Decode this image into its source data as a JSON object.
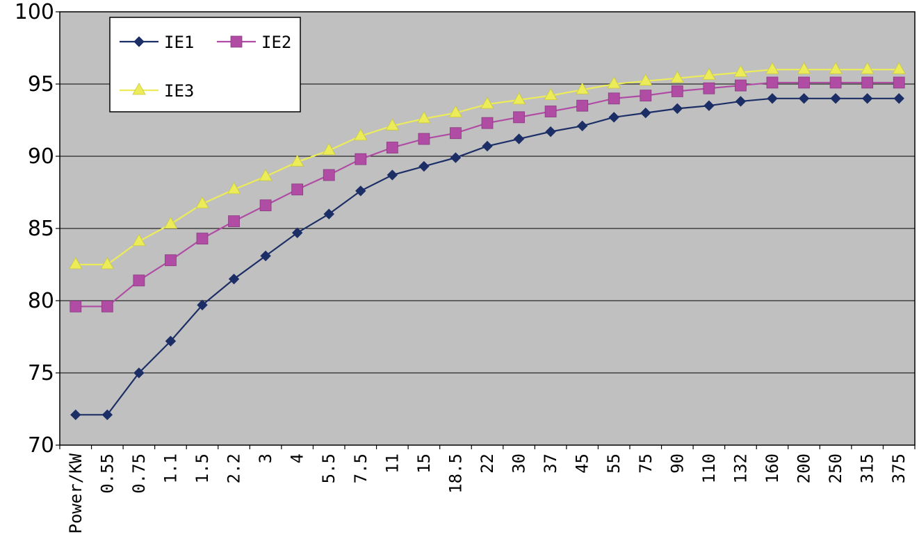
{
  "chart_data": {
    "type": "line",
    "categories": [
      "Power/KW",
      "0.55",
      "0.75",
      "1.1",
      "1.5",
      "2.2",
      "3",
      "4",
      "5.5",
      "7.5",
      "11",
      "15",
      "18.5",
      "22",
      "30",
      "37",
      "45",
      "55",
      "75",
      "90",
      "110",
      "132",
      "160",
      "200",
      "250",
      "315",
      "375"
    ],
    "ylim": [
      70,
      100
    ],
    "yticks": [
      70,
      75,
      80,
      85,
      90,
      95,
      100
    ],
    "grid": true,
    "legend_position": "top-left",
    "series": [
      {
        "name": "IE1",
        "color": "#1c2e66",
        "marker": "diamond",
        "values": [
          72.1,
          72.1,
          75.0,
          77.2,
          79.7,
          81.5,
          83.1,
          84.7,
          86.0,
          87.6,
          88.7,
          89.3,
          89.9,
          90.7,
          91.2,
          91.7,
          92.1,
          92.7,
          93.0,
          93.3,
          93.5,
          93.8,
          94.0,
          94.0,
          94.0,
          94.0,
          94.0
        ]
      },
      {
        "name": "IE2",
        "color": "#b04ca4",
        "marker": "square",
        "values": [
          79.6,
          79.6,
          81.4,
          82.8,
          84.3,
          85.5,
          86.6,
          87.7,
          88.7,
          89.8,
          90.6,
          91.2,
          91.6,
          92.3,
          92.7,
          93.1,
          93.5,
          94.0,
          94.2,
          94.5,
          94.7,
          94.9,
          95.1,
          95.1,
          95.1,
          95.1,
          95.1
        ]
      },
      {
        "name": "IE3",
        "color": "#ecec5a",
        "marker": "triangle",
        "values": [
          82.5,
          82.5,
          84.1,
          85.3,
          86.7,
          87.7,
          88.6,
          89.6,
          90.4,
          91.4,
          92.1,
          92.6,
          93.0,
          93.6,
          93.9,
          94.2,
          94.6,
          95.0,
          95.2,
          95.4,
          95.6,
          95.8,
          96.0,
          96.0,
          96.0,
          96.0,
          96.0
        ]
      }
    ]
  }
}
